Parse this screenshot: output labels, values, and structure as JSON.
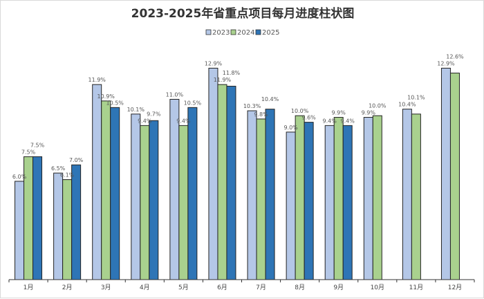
{
  "chart_data": {
    "type": "bar",
    "title": "2023-2025年省重点项目每月进度柱状图",
    "xlabel": "",
    "ylabel": "",
    "ylim": [
      0,
      13.3
    ],
    "grid": false,
    "legend_position": "top",
    "categories": [
      "1月",
      "2月",
      "3月",
      "4月",
      "5月",
      "6月",
      "7月",
      "8月",
      "9月",
      "10月",
      "11月",
      "12月"
    ],
    "series": [
      {
        "name": "2023",
        "color": "#b4c7e7",
        "values": [
          6.0,
          6.5,
          11.9,
          10.1,
          11.0,
          12.9,
          10.3,
          9.0,
          9.4,
          9.9,
          10.4,
          12.9
        ]
      },
      {
        "name": "2024",
        "color": "#a9d18e",
        "values": [
          7.5,
          6.1,
          10.9,
          9.4,
          9.4,
          11.9,
          9.8,
          10.0,
          9.9,
          10.0,
          10.1,
          12.6
        ]
      },
      {
        "name": "2025",
        "color": "#2e75b6",
        "values": [
          7.5,
          7.0,
          10.5,
          9.7,
          10.5,
          11.8,
          10.4,
          9.6,
          9.4,
          null,
          null,
          null
        ]
      }
    ],
    "label_suffix": "%"
  }
}
